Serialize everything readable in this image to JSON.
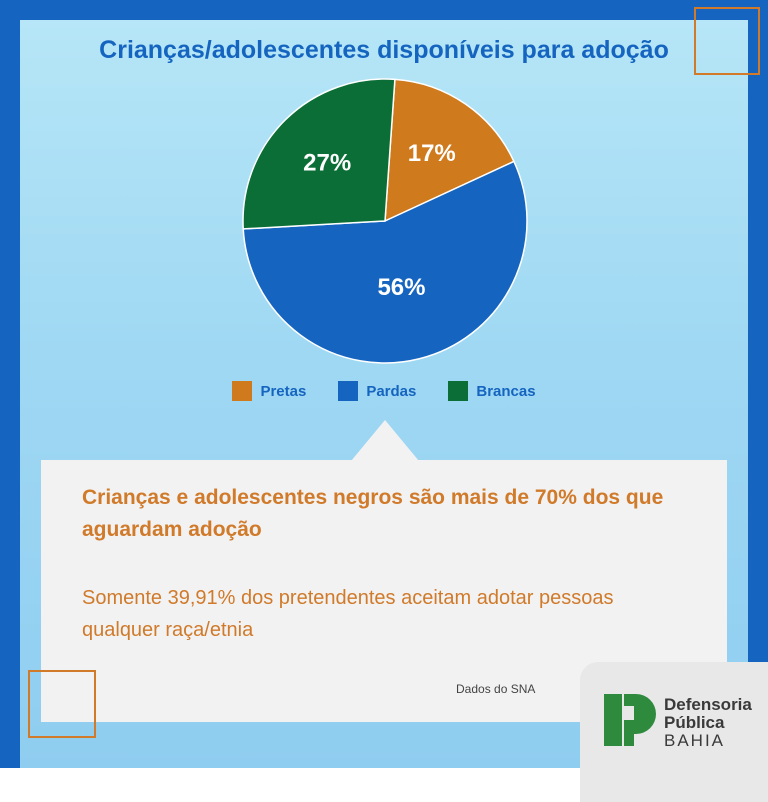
{
  "title": "Crianças/adolescentes disponíveis para adoção",
  "chart_data": {
    "type": "pie",
    "categories": [
      "Pretas",
      "Pardas",
      "Brancas"
    ],
    "values": [
      17,
      56,
      27
    ],
    "labels": [
      "17%",
      "56%",
      "27%"
    ],
    "colors": [
      "#d07a1e",
      "#1565c0",
      "#0b6e36"
    ],
    "legend": "bottom"
  },
  "legend": [
    {
      "label": "Pretas",
      "color": "#d07a1e"
    },
    {
      "label": "Pardas",
      "color": "#1565c0"
    },
    {
      "label": "Brancas",
      "color": "#0b6e36"
    }
  ],
  "card": {
    "headline": "Crianças e adolescentes negros são mais de 70% dos que aguardam adoção",
    "subline": "Somente 39,91% dos pretendentes aceitam adotar pessoas qualquer raça/etnia",
    "source": "Dados do SNA"
  },
  "logo": {
    "line1": "Defensoria",
    "line2": "Pública",
    "line3": "BAHIA",
    "color": "#2e8b3e"
  }
}
